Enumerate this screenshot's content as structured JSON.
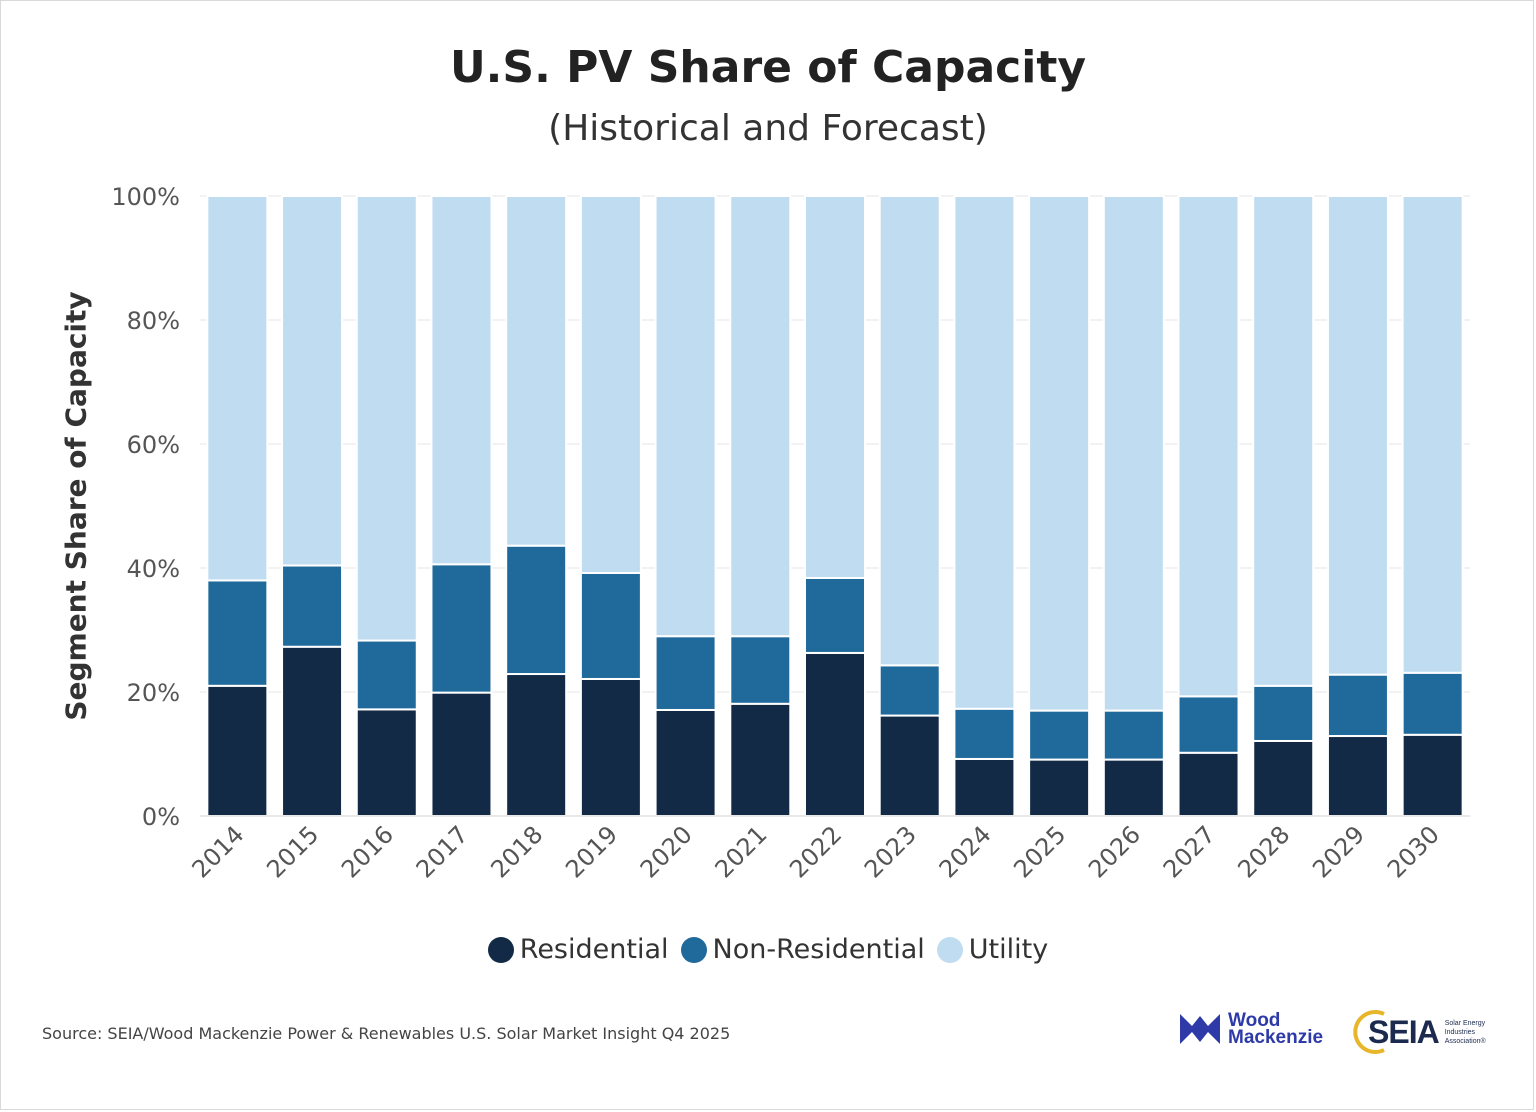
{
  "chart_data": {
    "type": "bar",
    "stacked": true,
    "title": "U.S. PV Share of Capacity",
    "subtitle": "(Historical and Forecast)",
    "ylabel": "Segment Share of Capacity",
    "xlabel": "",
    "ylim": [
      0,
      100
    ],
    "yticks": [
      "0%",
      "20%",
      "40%",
      "60%",
      "80%",
      "100%"
    ],
    "ytick_values": [
      0,
      20,
      40,
      60,
      80,
      100
    ],
    "grid": true,
    "legend_position": "bottom",
    "categories": [
      "2014",
      "2015",
      "2016",
      "2017",
      "2018",
      "2019",
      "2020",
      "2021",
      "2022",
      "2023",
      "2024",
      "2025",
      "2026",
      "2027",
      "2028",
      "2029",
      "2030"
    ],
    "series": [
      {
        "name": "Residential",
        "color": "#132a47",
        "values": [
          21,
          27.3,
          17.2,
          19.9,
          22.9,
          22.1,
          17.1,
          18.1,
          26.3,
          16.2,
          9.2,
          9.1,
          9.1,
          10.2,
          12.1,
          12.9,
          13.1
        ]
      },
      {
        "name": "Non-Residential",
        "color": "#20699b",
        "values": [
          17,
          13.1,
          11.1,
          20.7,
          20.7,
          17.1,
          11.9,
          10.9,
          12.1,
          8.1,
          8.1,
          7.9,
          7.9,
          9.1,
          8.9,
          9.9,
          10.0
        ]
      },
      {
        "name": "Utility",
        "color": "#bfdcf0",
        "values": [
          62,
          59.6,
          71.7,
          59.4,
          56.4,
          60.8,
          71.0,
          71.0,
          61.6,
          75.7,
          82.7,
          83.0,
          83.0,
          80.7,
          79.0,
          77.2,
          76.9
        ]
      }
    ]
  },
  "legend": {
    "items": [
      {
        "label": "Residential",
        "color": "#132a47"
      },
      {
        "label": "Non-Residential",
        "color": "#20699b"
      },
      {
        "label": "Utility",
        "color": "#bfdcf0"
      }
    ]
  },
  "footer": {
    "source": "Source: SEIA/Wood Mackenzie Power & Renewables U.S. Solar Market Insight Q4 2025"
  },
  "logos": {
    "wood_mackenzie": {
      "line1": "Wood",
      "line2": "Mackenzie",
      "color": "#2d3aa8"
    },
    "seia": {
      "name": "SEIA",
      "tagline": "Solar Energy Industries Association®",
      "accent": "#e8b62a"
    }
  }
}
